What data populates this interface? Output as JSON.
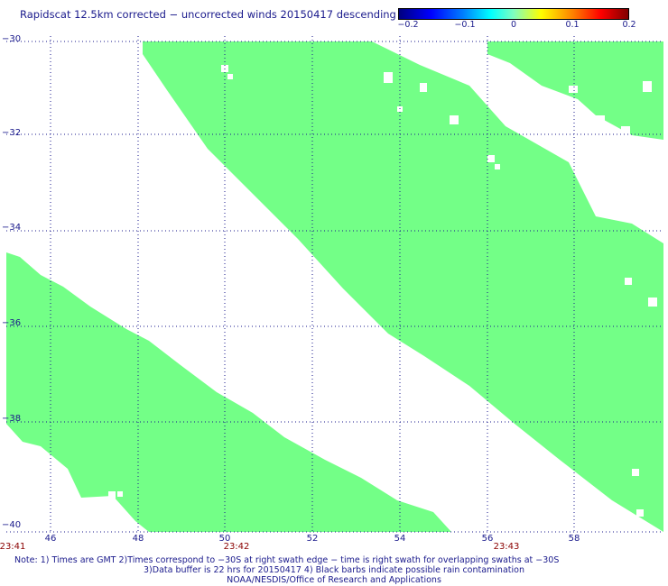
{
  "title": "Rapidscat 12.5km corrected − uncorrected winds 20150417 descending",
  "colorbar": {
    "ticks": [
      "−0.2",
      "−0.1",
      "0",
      "0.1",
      "0.2"
    ],
    "min": -0.2,
    "max": 0.2
  },
  "map": {
    "lat_labels": [
      "−30",
      "−32",
      "−34",
      "−36",
      "−38",
      "−40"
    ],
    "lon_labels": [
      "46",
      "48",
      "50",
      "52",
      "54",
      "56",
      "58"
    ],
    "lat_range": [
      -30,
      -40
    ],
    "lon_range": [
      45,
      60
    ],
    "swath_color": "#73ff87",
    "grid": true
  },
  "times": [
    "23:41",
    "23:42",
    "23:43"
  ],
  "notes": {
    "line1": "Note: 1) Times are GMT 2)Times correspond to −30S at right swath edge − time is right swath for overlapping swaths at −30S",
    "line2": "3)Data buffer is 22 hrs for 20150417 4) Black barbs indicate possible rain contamination",
    "line3": "NOAA/NESDIS/Office of Research and Applications"
  }
}
